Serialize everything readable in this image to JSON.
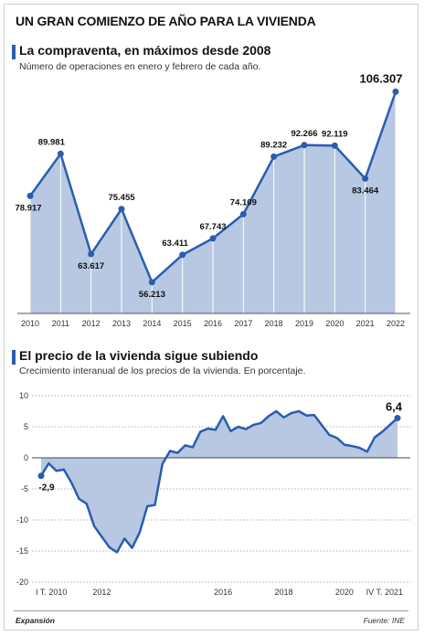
{
  "header": {
    "title": "UN GRAN COMIENZO DE AÑO PARA LA VIVIENDA"
  },
  "footer": {
    "source_left": "Expansión",
    "source_right": "Fuente: INE"
  },
  "colors": {
    "accent": "#2a5db0",
    "line": "#2a5db0",
    "fill": "#b8c8e2",
    "grid": "#999999"
  },
  "chart_data": [
    {
      "type": "area",
      "title": "La compraventa, en máximos desde 2008",
      "subtitle": "Número de operaciones en enero y febrero de cada año.",
      "categories": [
        "2010",
        "2011",
        "2012",
        "2013",
        "2014",
        "2015",
        "2016",
        "2017",
        "2018",
        "2019",
        "2020",
        "2021",
        "2022"
      ],
      "values": [
        78917,
        89981,
        63617,
        75455,
        56213,
        63411,
        67743,
        74109,
        89232,
        92266,
        92119,
        83464,
        106307
      ],
      "labels": [
        "78.917",
        "89.981",
        "63.617",
        "75.455",
        "56.213",
        "63.411",
        "67.743",
        "74.109",
        "89.232",
        "92.266",
        "92.119",
        "83.464",
        "106.307"
      ],
      "ylim": [
        48000,
        110000
      ],
      "grid": false
    },
    {
      "type": "area",
      "title": "El precio de la vivienda sigue subiendo",
      "subtitle": "Crecimiento interanual de los precios de la vivienda. En porcentaje.",
      "yticks": [
        "10",
        "5",
        "0",
        "-5",
        "-10",
        "-15",
        "-20"
      ],
      "ytick_values": [
        10,
        5,
        0,
        -5,
        -10,
        -15,
        -20
      ],
      "xtick_labels": [
        "I T. 2010",
        "2012",
        "2016",
        "2018",
        "2020",
        "IV T. 2021"
      ],
      "xtick_index": [
        0,
        8,
        24,
        32,
        40,
        47
      ],
      "ylim": [
        -20,
        10
      ],
      "grid": true,
      "values": [
        -2.9,
        -0.9,
        -2.1,
        -1.9,
        -4.0,
        -6.6,
        -7.4,
        -11.0,
        -12.7,
        -14.4,
        -15.2,
        -13.0,
        -14.5,
        -12.0,
        -7.8,
        -7.6,
        -1.0,
        1.1,
        0.8,
        2.0,
        1.7,
        4.2,
        4.7,
        4.5,
        6.7,
        4.3,
        5.0,
        4.6,
        5.3,
        5.6,
        6.7,
        7.5,
        6.5,
        7.2,
        7.5,
        6.8,
        6.9,
        5.3,
        3.7,
        3.2,
        2.1,
        1.9,
        1.6,
        1.0,
        3.3,
        4.2,
        5.3,
        6.4
      ],
      "end_label": "6,4",
      "start_label": "-2,9"
    }
  ]
}
